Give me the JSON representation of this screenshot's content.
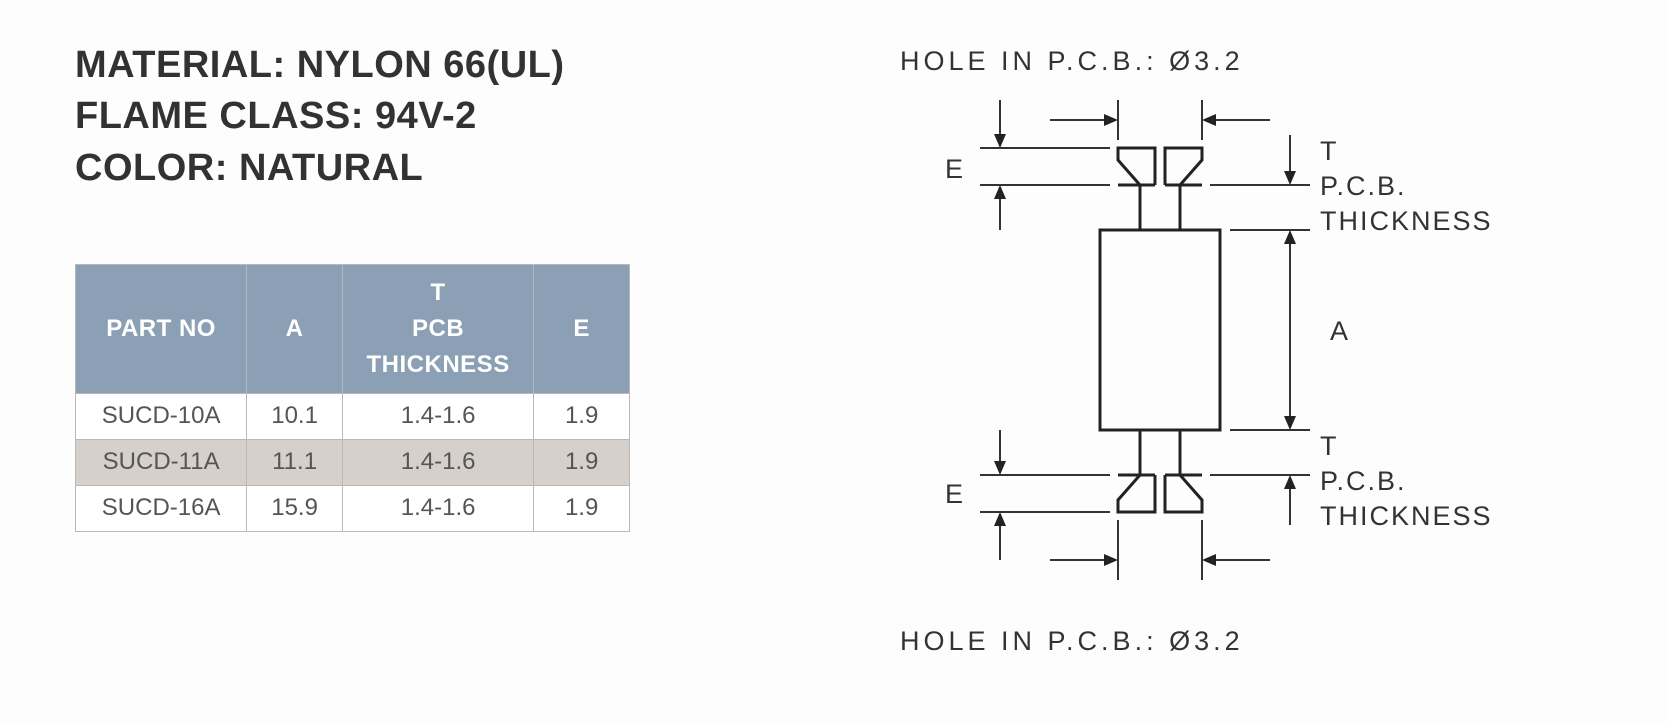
{
  "specs": {
    "material_label": "MATERIAL:",
    "material_value": "NYLON 66(UL)",
    "flame_label": "FLAME CLASS:",
    "flame_value": "94V-2",
    "color_label": "COLOR:",
    "color_value": "NATURAL"
  },
  "table": {
    "header_bg": "#8ba0b5",
    "header_fg": "#ffffff",
    "row_bg": "#ffffff",
    "alt_bg": "#d6d0cb",
    "border": "#b8b8b8",
    "columns": {
      "part_no": "PART NO",
      "a": "A",
      "t_line1": "T",
      "t_line2": "PCB",
      "t_line3": "THICKNESS",
      "e": "E"
    },
    "rows": [
      {
        "part": "SUCD-10A",
        "a": "10.1",
        "t": "1.4-1.6",
        "e": "1.9",
        "alt": false
      },
      {
        "part": "SUCD-11A",
        "a": "11.1",
        "t": "1.4-1.6",
        "e": "1.9",
        "alt": true
      },
      {
        "part": "SUCD-16A",
        "a": "15.9",
        "t": "1.4-1.6",
        "e": "1.9",
        "alt": false
      }
    ]
  },
  "diagram": {
    "hole_label_top": "HOLE  IN  P.C.B.:  Ø3.2",
    "hole_label_bottom": "HOLE  IN  P.C.B.:  Ø3.2",
    "E_top": "E",
    "E_bot": "E",
    "T_top": "T",
    "T_bot": "T",
    "pcb_top1": "P.C.B.",
    "pcb_top2": "THICKNESS",
    "pcb_bot1": "P.C.B.",
    "pcb_bot2": "THICKNESS",
    "A": "A"
  }
}
